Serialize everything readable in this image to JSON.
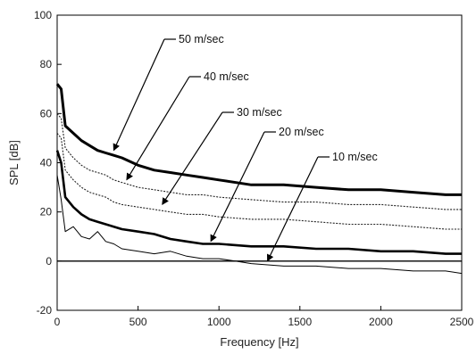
{
  "chart_data": {
    "type": "line",
    "xlabel": "Frequency [Hz]",
    "ylabel": "SPL [dB]",
    "xlim": [
      0,
      2500
    ],
    "ylim": [
      -20,
      100
    ],
    "x_ticks": [
      0,
      500,
      1000,
      1500,
      2000,
      2500
    ],
    "y_ticks": [
      -20,
      0,
      20,
      40,
      60,
      80,
      100
    ],
    "x_tick_labels": [
      "0",
      "500",
      "1000",
      "1500",
      "2000",
      "2500"
    ],
    "y_tick_labels": [
      "-20",
      "0",
      "20",
      "40",
      "60",
      "80",
      "100"
    ],
    "grid": false,
    "reference_line_y": 0,
    "series": [
      {
        "name": "50 m/sec",
        "color": "#000000",
        "x": [
          0,
          25,
          50,
          100,
          150,
          200,
          250,
          300,
          350,
          400,
          500,
          600,
          700,
          800,
          900,
          1000,
          1200,
          1400,
          1600,
          1800,
          2000,
          2200,
          2400,
          2500
        ],
        "y": [
          72,
          70,
          55,
          52,
          49,
          47,
          45,
          44,
          43,
          42,
          39,
          37,
          36,
          35,
          34,
          33,
          31,
          31,
          30,
          29,
          29,
          28,
          27,
          27
        ]
      },
      {
        "name": "40 m/sec",
        "color": "#222222",
        "x": [
          0,
          25,
          50,
          100,
          150,
          200,
          250,
          300,
          350,
          400,
          500,
          600,
          700,
          800,
          900,
          1000,
          1200,
          1400,
          1600,
          1800,
          2000,
          2200,
          2400,
          2500
        ],
        "y": [
          60,
          58,
          46,
          42,
          39,
          37,
          36,
          35,
          33,
          32,
          30,
          29,
          28,
          27,
          27,
          26,
          25,
          24,
          24,
          23,
          23,
          22,
          21,
          21
        ]
      },
      {
        "name": "30 m/sec",
        "color": "#222222",
        "x": [
          0,
          25,
          50,
          100,
          150,
          200,
          250,
          300,
          350,
          400,
          500,
          600,
          700,
          800,
          900,
          1000,
          1200,
          1400,
          1600,
          1800,
          2000,
          2200,
          2400,
          2500
        ],
        "y": [
          52,
          50,
          37,
          33,
          30,
          28,
          27,
          26,
          24,
          23,
          22,
          21,
          20,
          19,
          19,
          18,
          17,
          17,
          16,
          15,
          15,
          14,
          13,
          13
        ]
      },
      {
        "name": "20 m/sec",
        "color": "#000000",
        "x": [
          0,
          25,
          50,
          100,
          150,
          200,
          250,
          300,
          350,
          400,
          500,
          600,
          700,
          800,
          900,
          1000,
          1200,
          1400,
          1600,
          1800,
          2000,
          2200,
          2400,
          2500
        ],
        "y": [
          45,
          40,
          26,
          22,
          19,
          17,
          16,
          15,
          14,
          13,
          12,
          11,
          9,
          8,
          7,
          7,
          6,
          6,
          5,
          5,
          4,
          4,
          3,
          3
        ]
      },
      {
        "name": "10 m/sec",
        "color": "#000000",
        "x": [
          0,
          25,
          50,
          100,
          150,
          200,
          250,
          300,
          350,
          400,
          500,
          600,
          700,
          800,
          900,
          1000,
          1100,
          1200,
          1400,
          1600,
          1800,
          2000,
          2200,
          2400,
          2500
        ],
        "y": [
          35,
          25,
          12,
          14,
          10,
          9,
          12,
          8,
          7,
          5,
          4,
          3,
          4,
          2,
          1,
          1,
          0,
          -1,
          -2,
          -2,
          -3,
          -3,
          -4,
          -4,
          -5
        ]
      }
    ],
    "annotations": [
      {
        "text": "50 m/sec",
        "series": "50 m/sec",
        "target": [
          350,
          44
        ]
      },
      {
        "text": "40 m/sec",
        "series": "40 m/sec",
        "target": [
          430,
          32
        ]
      },
      {
        "text": "30 m/sec",
        "series": "30 m/sec",
        "target": [
          650,
          22
        ]
      },
      {
        "text": "20 m/sec",
        "series": "20 m/sec",
        "target": [
          950,
          7
        ]
      },
      {
        "text": "10 m/sec",
        "series": "10 m/sec",
        "target": [
          1300,
          -1
        ]
      }
    ]
  }
}
